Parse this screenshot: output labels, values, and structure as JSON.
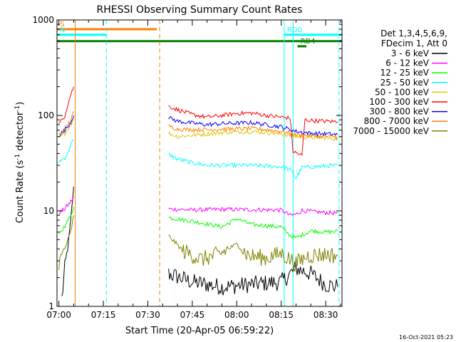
{
  "chart_data": {
    "type": "line",
    "title": "RHESSI Observing Summary Count Rates",
    "xlabel": "Start Time (20-Apr-05 06:59:22)",
    "ylabel": "Count Rate (s",
    "ylabel_sup1": "-1",
    "ylabel_mid": " detector",
    "ylabel_sup2": "-1",
    "ylabel_end": ")",
    "y_scale": "log",
    "ylim": [
      1,
      1000
    ],
    "xlim": [
      "06:59:22",
      "08:35:30"
    ],
    "x_ticks": [
      "07:00",
      "07:15",
      "07:30",
      "07:45",
      "08:00",
      "08:15",
      "08:30"
    ],
    "y_ticks": [
      "1",
      "10",
      "100",
      "1000"
    ],
    "grid": false,
    "legend_position": "right",
    "legend_header": [
      "Det 1,3,4,5,6,9,",
      "FDecim 1, Att 0"
    ],
    "series": [
      {
        "name": "3 - 6 keV",
        "color": "#000000",
        "segments": [
          {
            "x": [
              "07:01:00",
              "07:02:00",
              "07:03:00",
              "07:04:00",
              "07:05:00"
            ],
            "y": [
              1.2,
              2.5,
              4,
              8,
              18
            ]
          },
          {
            "x": [
              "07:37:00",
              "07:45:00",
              "07:55:00",
              "08:05:00",
              "08:15:00",
              "08:20:00",
              "08:25:00",
              "08:30:00",
              "08:34:00"
            ],
            "y": [
              2.2,
              1.8,
              1.6,
              1.7,
              1.8,
              2.5,
              2.2,
              1.7,
              1.6
            ]
          }
        ]
      },
      {
        "name": "6 - 12 keV",
        "color": "#ff00ff",
        "segments": [
          {
            "x": [
              "07:00:00",
              "07:02:00",
              "07:04:00",
              "07:05:00"
            ],
            "y": [
              9.5,
              10.5,
              12.5,
              14
            ]
          },
          {
            "x": [
              "07:37:00",
              "07:45:00",
              "07:55:00",
              "08:05:00",
              "08:15:00",
              "08:18:00",
              "08:20:00",
              "08:22:00",
              "08:26:00",
              "08:30:00",
              "08:34:00"
            ],
            "y": [
              10.5,
              10.2,
              10.4,
              10.3,
              10.2,
              9,
              9.2,
              10.1,
              9.8,
              9.6,
              9.5
            ]
          }
        ]
      },
      {
        "name": "12 - 25 keV",
        "color": "#00ff00",
        "segments": [
          {
            "x": [
              "07:00:00",
              "07:02:00",
              "07:04:00",
              "07:05:00"
            ],
            "y": [
              5.5,
              7,
              9,
              11
            ]
          },
          {
            "x": [
              "07:37:00",
              "07:45:00",
              "07:55:00",
              "08:00:00",
              "08:05:00",
              "08:15:00",
              "08:18:00",
              "08:20:00",
              "08:25:00",
              "08:30:00",
              "08:34:00"
            ],
            "y": [
              8.5,
              7.8,
              6.8,
              8.3,
              7.2,
              6.8,
              5.5,
              5.2,
              6.2,
              6,
              6.1
            ]
          }
        ]
      },
      {
        "name": "25 - 50 keV",
        "color": "#00ffff",
        "segments": [
          {
            "x": [
              "07:00:00",
              "07:02:00",
              "07:03:00",
              "07:04:00",
              "07:05:00"
            ],
            "y": [
              33,
              36,
              40,
              50,
              55
            ]
          },
          {
            "x": [
              "07:37:00",
              "07:40:00",
              "07:45:00",
              "07:50:00",
              "07:55:00",
              "08:00:00",
              "08:05:00",
              "08:10:00",
              "08:15:00",
              "08:18:00",
              "08:20:00",
              "08:22:00",
              "08:26:00",
              "08:30:00",
              "08:34:00"
            ],
            "y": [
              39,
              35,
              32,
              30,
              30,
              30,
              30,
              29.5,
              29,
              27,
              22,
              28.5,
              29,
              29.5,
              30
            ]
          }
        ]
      },
      {
        "name": "50 - 100 keV",
        "color": "#e0c800",
        "segments": [
          {
            "x": [
              "07:00:00",
              "07:02:00",
              "07:04:00",
              "07:05:00"
            ],
            "y": [
              58,
              65,
              80,
              95
            ]
          },
          {
            "x": [
              "07:37:00",
              "07:40:00",
              "07:45:00",
              "07:50:00",
              "07:55:00",
              "08:00:00",
              "08:05:00",
              "08:10:00",
              "08:15:00",
              "08:20:00",
              "08:25:00",
              "08:30:00",
              "08:34:00"
            ],
            "y": [
              65,
              60,
              62,
              64,
              66,
              67,
              68,
              66,
              64,
              60,
              59,
              58,
              57
            ]
          }
        ]
      },
      {
        "name": "100 - 300 keV",
        "color": "#ff0000",
        "segments": [
          {
            "x": [
              "07:00:00",
              "07:01:00",
              "07:02:00",
              "07:03:00",
              "07:04:00",
              "07:05:00"
            ],
            "y": [
              80,
              90,
              100,
              130,
              165,
              200
            ]
          },
          {
            "x": [
              "07:37:00",
              "07:40:00",
              "07:45:00",
              "07:50:00",
              "07:55:00",
              "08:00:00",
              "08:05:00",
              "08:10:00",
              "08:15:00",
              "08:18:00",
              "08:19:00",
              "08:22:00",
              "08:23:00",
              "08:26:00",
              "08:30:00",
              "08:34:00"
            ],
            "y": [
              125,
              115,
              102,
              96,
              100,
              105,
              106,
              100,
              96,
              94,
              42,
              38,
              90,
              88,
              87,
              86
            ]
          }
        ]
      },
      {
        "name": "300 - 800 keV",
        "color": "#0000ff",
        "segments": [
          {
            "x": [
              "07:00:00",
              "07:02:00",
              "07:04:00",
              "07:05:00"
            ],
            "y": [
              62,
              70,
              85,
              100
            ]
          },
          {
            "x": [
              "07:37:00",
              "07:40:00",
              "07:45:00",
              "07:50:00",
              "07:55:00",
              "08:00:00",
              "08:05:00",
              "08:10:00",
              "08:15:00",
              "08:20:00",
              "08:25:00",
              "08:30:00",
              "08:34:00"
            ],
            "y": [
              95,
              87,
              83,
              80,
              82,
              83,
              84,
              80,
              76,
              68,
              65,
              64,
              63
            ]
          }
        ]
      },
      {
        "name": "800 - 7000 keV",
        "color": "#ff8000",
        "segments": [
          {
            "x": [
              "07:00:00",
              "07:02:00",
              "07:04:00",
              "07:05:00"
            ],
            "y": [
              62,
              72,
              90,
              110
            ]
          },
          {
            "x": [
              "07:37:00",
              "07:40:00",
              "07:45:00",
              "07:50:00",
              "07:55:00",
              "08:00:00",
              "08:05:00",
              "08:10:00",
              "08:15:00",
              "08:20:00",
              "08:25:00",
              "08:30:00",
              "08:34:00"
            ],
            "y": [
              78,
              72,
              71,
              71,
              72,
              72,
              73,
              71,
              68,
              63,
              61,
              60,
              60
            ]
          }
        ]
      },
      {
        "name": "7000 - 15000 keV",
        "color": "#808000",
        "segments": [
          {
            "x": [
              "07:00:00",
              "07:02:00",
              "07:04:00",
              "07:05:00"
            ],
            "y": [
              2.8,
              4,
              6,
              9
            ]
          },
          {
            "x": [
              "07:37:00",
              "07:42:00",
              "07:48:00",
              "07:54:00",
              "08:00:00",
              "08:04:00",
              "08:10:00",
              "08:15:00",
              "08:20:00",
              "08:24:00",
              "08:30:00",
              "08:34:00"
            ],
            "y": [
              5.5,
              3.8,
              3.1,
              3.5,
              4.5,
              3.4,
              3.2,
              3.6,
              2.8,
              3.4,
              3.5,
              3.4
            ]
          }
        ]
      }
    ],
    "state_bars": [
      {
        "label": "S",
        "color": "#ff8000",
        "y": 800,
        "x": [
          "06:59:22",
          "07:33:00"
        ]
      },
      {
        "label": "N",
        "color": "#00ffff",
        "y": 700,
        "x": [
          "06:59:22",
          "07:16:00"
        ]
      },
      {
        "label": "",
        "color": "#008000",
        "y": 600,
        "x": [
          "06:59:22",
          "08:35:30"
        ]
      },
      {
        "label": "RD0",
        "color": "#00ffff",
        "y": 700,
        "x": [
          "08:16:00",
          "08:35:30"
        ]
      },
      {
        "label": "RD4",
        "color": "#008000",
        "y": 530,
        "x": [
          "08:20:30",
          "08:23:30"
        ]
      }
    ],
    "vertical_lines": [
      {
        "x": "06:59:22",
        "color": "#00ffff",
        "style": "solid"
      },
      {
        "x": "07:05:30",
        "color": "#ff8000",
        "style": "solid"
      },
      {
        "x": "07:16:00",
        "color": "#00ffff",
        "style": "dashed"
      },
      {
        "x": "07:34:00",
        "color": "#ff8000",
        "style": "dashed"
      },
      {
        "x": "08:16:00",
        "color": "#00ffff",
        "style": "solid"
      },
      {
        "x": "08:19:00",
        "color": "#00ffff",
        "style": "solid"
      },
      {
        "x": "08:34:30",
        "color": "#00ffff",
        "style": "dashed"
      }
    ],
    "footer_timestamp": "16-Oct-2021 05:23"
  }
}
